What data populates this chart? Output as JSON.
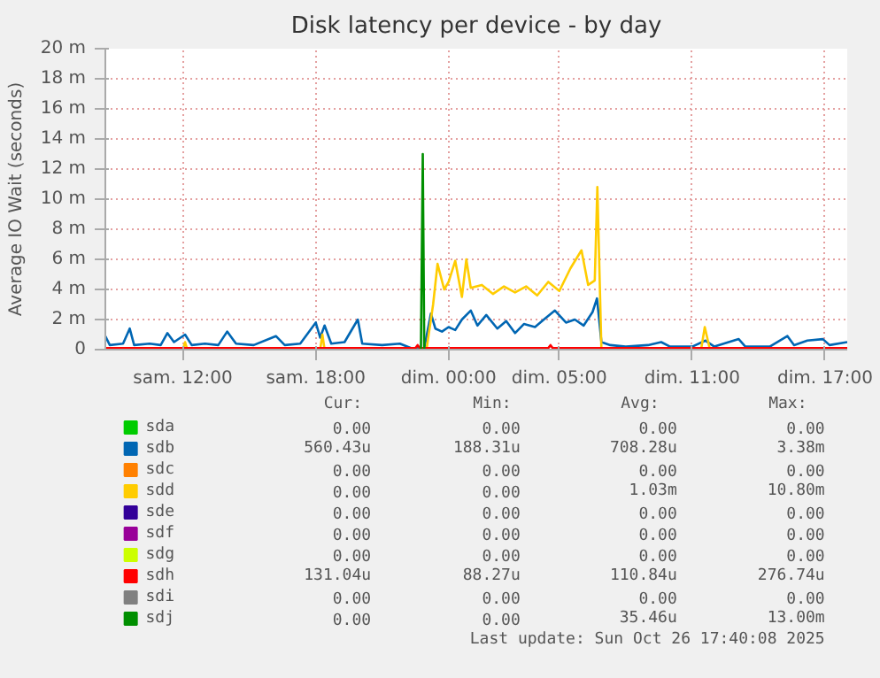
{
  "chart_data": {
    "type": "line",
    "title": "Disk latency per device - by day",
    "ylabel": "Average IO Wait (seconds)",
    "xlim": [
      "2025-10-25T08:30",
      "2025-10-26T18:00"
    ],
    "xticks": [
      {
        "value": "2025-10-25T12:00",
        "label": "sam. 12:00"
      },
      {
        "value": "2025-10-25T18:00",
        "label": "sam. 18:00"
      },
      {
        "value": "2025-10-26T00:00",
        "label": "dim. 00:00"
      },
      {
        "value": "2025-10-26T05:00",
        "label": "dim. 05:00"
      },
      {
        "value": "2025-10-26T11:00",
        "label": "dim. 11:00"
      },
      {
        "value": "2025-10-26T17:00",
        "label": "dim. 17:00"
      }
    ],
    "ylim": [
      0,
      20
    ],
    "yticks": [
      0,
      {
        "value": 2,
        "label": "2 m"
      },
      {
        "value": 4,
        "label": "4 m"
      },
      {
        "value": 6,
        "label": "6 m"
      },
      {
        "value": 8,
        "label": "8 m"
      },
      {
        "value": 10,
        "label": "10 m"
      },
      {
        "value": 12,
        "label": "12 m"
      },
      {
        "value": 14,
        "label": "14 m"
      },
      {
        "value": 16,
        "label": "16 m"
      },
      {
        "value": 18,
        "label": "18 m"
      },
      {
        "value": 20,
        "label": "20 m"
      }
    ],
    "grid": true,
    "legend": "bottom",
    "marker": "none",
    "line_style": "solid",
    "series": [
      {
        "name": "sda",
        "color": "#00cc00"
      },
      {
        "name": "sdb",
        "color": "#0066b3",
        "x": [
          "2025-10-25T08:30",
          "2025-10-25T08:42",
          "2025-10-25T09:18",
          "2025-10-25T09:36",
          "2025-10-25T09:48",
          "2025-10-25T10:30",
          "2025-10-25T11:00",
          "2025-10-25T11:18",
          "2025-10-25T11:36",
          "2025-10-25T12:06",
          "2025-10-25T12:24",
          "2025-10-25T13:00",
          "2025-10-25T13:36",
          "2025-10-25T14:00",
          "2025-10-25T14:24",
          "2025-10-25T15:12",
          "2025-10-25T16:12",
          "2025-10-25T16:36",
          "2025-10-25T17:18",
          "2025-10-25T18:00",
          "2025-10-25T18:12",
          "2025-10-25T18:24",
          "2025-10-25T18:42",
          "2025-10-25T19:18",
          "2025-10-25T19:54",
          "2025-10-25T20:06",
          "2025-10-25T21:00",
          "2025-10-25T21:48",
          "2025-10-25T22:18",
          "2025-10-25T22:54",
          "2025-10-25T23:12",
          "2025-10-25T23:24",
          "2025-10-25T23:42",
          "2025-10-26T00:00",
          "2025-10-26T00:18",
          "2025-10-26T00:36",
          "2025-10-26T01:00",
          "2025-10-26T01:18",
          "2025-10-26T01:42",
          "2025-10-26T02:12",
          "2025-10-26T02:36",
          "2025-10-26T03:00",
          "2025-10-26T03:24",
          "2025-10-26T03:54",
          "2025-10-26T04:18",
          "2025-10-26T04:48",
          "2025-10-26T05:18",
          "2025-10-26T05:42",
          "2025-10-26T06:06",
          "2025-10-26T06:30",
          "2025-10-26T06:42",
          "2025-10-26T06:54",
          "2025-10-26T07:18",
          "2025-10-26T08:00",
          "2025-10-26T09:00",
          "2025-10-26T09:36",
          "2025-10-26T10:00",
          "2025-10-26T11:00",
          "2025-10-26T11:36",
          "2025-10-26T12:00",
          "2025-10-26T13:06",
          "2025-10-26T13:24",
          "2025-10-26T14:30",
          "2025-10-26T15:18",
          "2025-10-26T15:36",
          "2025-10-26T16:12",
          "2025-10-26T16:54",
          "2025-10-26T17:12",
          "2025-10-26T18:00"
        ],
        "values": [
          0.9,
          0.3,
          0.4,
          1.4,
          0.3,
          0.4,
          0.3,
          1.1,
          0.5,
          1.0,
          0.3,
          0.4,
          0.3,
          1.2,
          0.4,
          0.3,
          0.9,
          0.3,
          0.4,
          1.8,
          0.8,
          1.6,
          0.4,
          0.5,
          2.0,
          0.4,
          0.3,
          0.4,
          0.1,
          0.1,
          2.4,
          1.4,
          1.2,
          1.5,
          1.3,
          2.0,
          2.6,
          1.6,
          2.3,
          1.4,
          1.9,
          1.1,
          1.7,
          1.5,
          2.0,
          2.6,
          1.8,
          2.0,
          1.6,
          2.5,
          3.4,
          0.5,
          0.3,
          0.2,
          0.3,
          0.5,
          0.2,
          0.2,
          0.6,
          0.2,
          0.7,
          0.2,
          0.2,
          0.9,
          0.3,
          0.6,
          0.7,
          0.3,
          0.5
        ]
      },
      {
        "name": "sdc",
        "color": "#ff8000"
      },
      {
        "name": "sdd",
        "color": "#ffcc00",
        "x": [
          "2025-10-25T08:30",
          "2025-10-25T12:00",
          "2025-10-25T12:06",
          "2025-10-25T12:12",
          "2025-10-25T18:12",
          "2025-10-25T18:18",
          "2025-10-25T18:24",
          "2025-10-25T23:00",
          "2025-10-25T23:18",
          "2025-10-25T23:30",
          "2025-10-25T23:48",
          "2025-10-26T00:00",
          "2025-10-26T00:18",
          "2025-10-26T00:36",
          "2025-10-26T00:48",
          "2025-10-26T01:00",
          "2025-10-26T01:30",
          "2025-10-26T02:00",
          "2025-10-26T02:30",
          "2025-10-26T03:00",
          "2025-10-26T03:30",
          "2025-10-26T04:00",
          "2025-10-26T04:30",
          "2025-10-26T05:00",
          "2025-10-26T05:30",
          "2025-10-26T06:00",
          "2025-10-26T06:18",
          "2025-10-26T06:36",
          "2025-10-26T06:43",
          "2025-10-26T06:54",
          "2025-10-26T11:24",
          "2025-10-26T11:34",
          "2025-10-26T11:48",
          "2025-10-26T18:00"
        ],
        "values": [
          0,
          0,
          0.5,
          0,
          0,
          1.0,
          0,
          0,
          3.0,
          5.7,
          4.0,
          4.5,
          5.9,
          3.5,
          6.0,
          4.1,
          4.3,
          3.7,
          4.2,
          3.8,
          4.2,
          3.6,
          4.5,
          3.9,
          5.4,
          6.6,
          4.3,
          4.6,
          10.8,
          0,
          0,
          1.5,
          0,
          0
        ]
      },
      {
        "name": "sde",
        "color": "#330099"
      },
      {
        "name": "sdf",
        "color": "#990099"
      },
      {
        "name": "sdg",
        "color": "#ccff00"
      },
      {
        "name": "sdh",
        "color": "#ff0000",
        "x": [
          "2025-10-25T08:30",
          "2025-10-25T22:30",
          "2025-10-25T22:36",
          "2025-10-25T22:42",
          "2025-10-26T04:30",
          "2025-10-26T04:36",
          "2025-10-26T04:42",
          "2025-10-26T18:00"
        ],
        "values": [
          0.1,
          0.1,
          0.3,
          0.1,
          0.1,
          0.3,
          0.1,
          0.1
        ]
      },
      {
        "name": "sdi",
        "color": "#808080"
      },
      {
        "name": "sdj",
        "color": "#008f00",
        "x": [
          "2025-10-25T22:45",
          "2025-10-25T22:50",
          "2025-10-25T22:54"
        ],
        "values": [
          0,
          13.0,
          0
        ]
      }
    ],
    "annotations": [
      "Cur:",
      "Min:",
      "Avg:",
      "Max:",
      "0.00",
      "0.00",
      "0.00",
      "0.00",
      "560.43u",
      "188.31u",
      "708.28u",
      "3.38m",
      "0.00",
      "0.00",
      "0.00",
      "0.00",
      "0.00",
      "0.00",
      "1.03m",
      "10.80m",
      "0.00",
      "0.00",
      "0.00",
      "0.00",
      "0.00",
      "0.00",
      "0.00",
      "0.00",
      "0.00",
      "0.00",
      "0.00",
      "0.00",
      "131.04u",
      "88.27u",
      "110.84u",
      "276.74u",
      "0.00",
      "0.00",
      "0.00",
      "0.00",
      "0.00",
      "0.00",
      "35.46u",
      "13.00m",
      "Last update: Sun Oct 26 17:40:08 2025"
    ]
  }
}
